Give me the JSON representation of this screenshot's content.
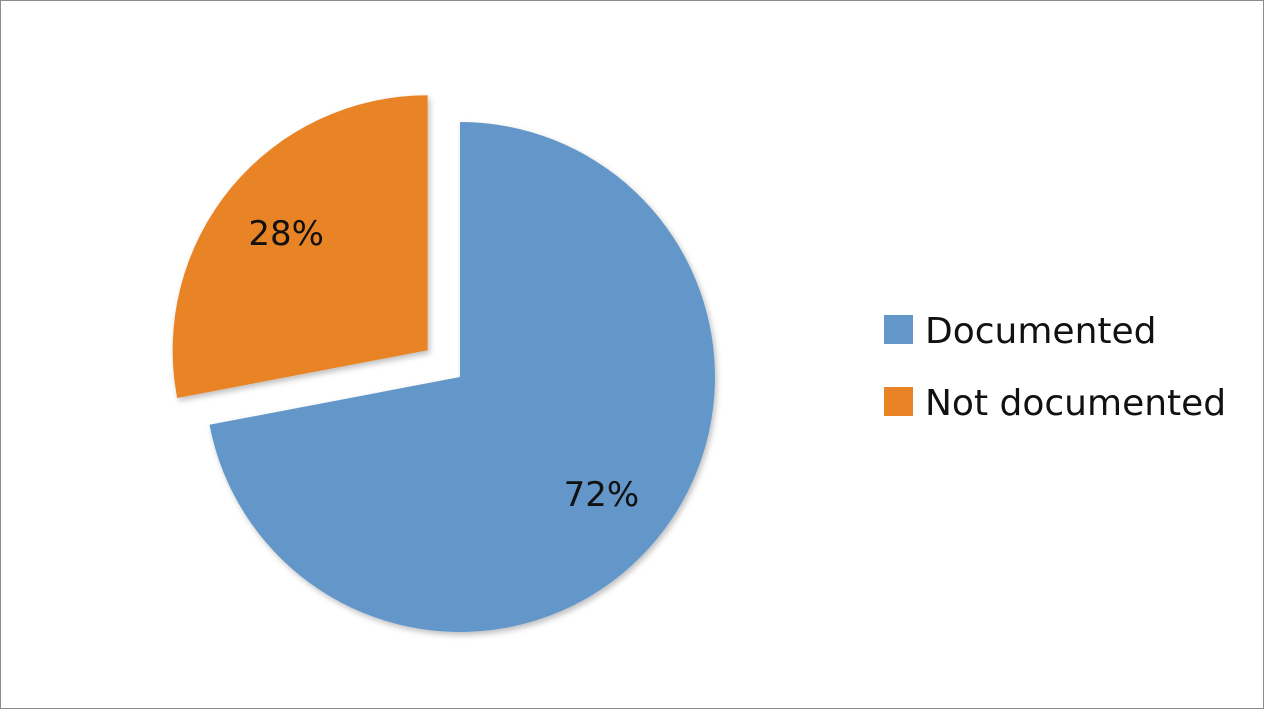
{
  "chart_data": {
    "type": "pie",
    "title": "",
    "categories": [
      "Documented",
      "Not documented"
    ],
    "values": [
      72,
      28
    ],
    "data_labels": [
      "72%",
      "28%"
    ],
    "colors": [
      "#6497c9",
      "#e98426"
    ],
    "exploded": [
      false,
      true
    ],
    "legend_position": "right",
    "start_angle_deg": 0,
    "direction": "clockwise"
  },
  "legend": {
    "items": [
      {
        "label": "Documented",
        "color": "#6497c9"
      },
      {
        "label": "Not documented",
        "color": "#e98426"
      }
    ]
  }
}
